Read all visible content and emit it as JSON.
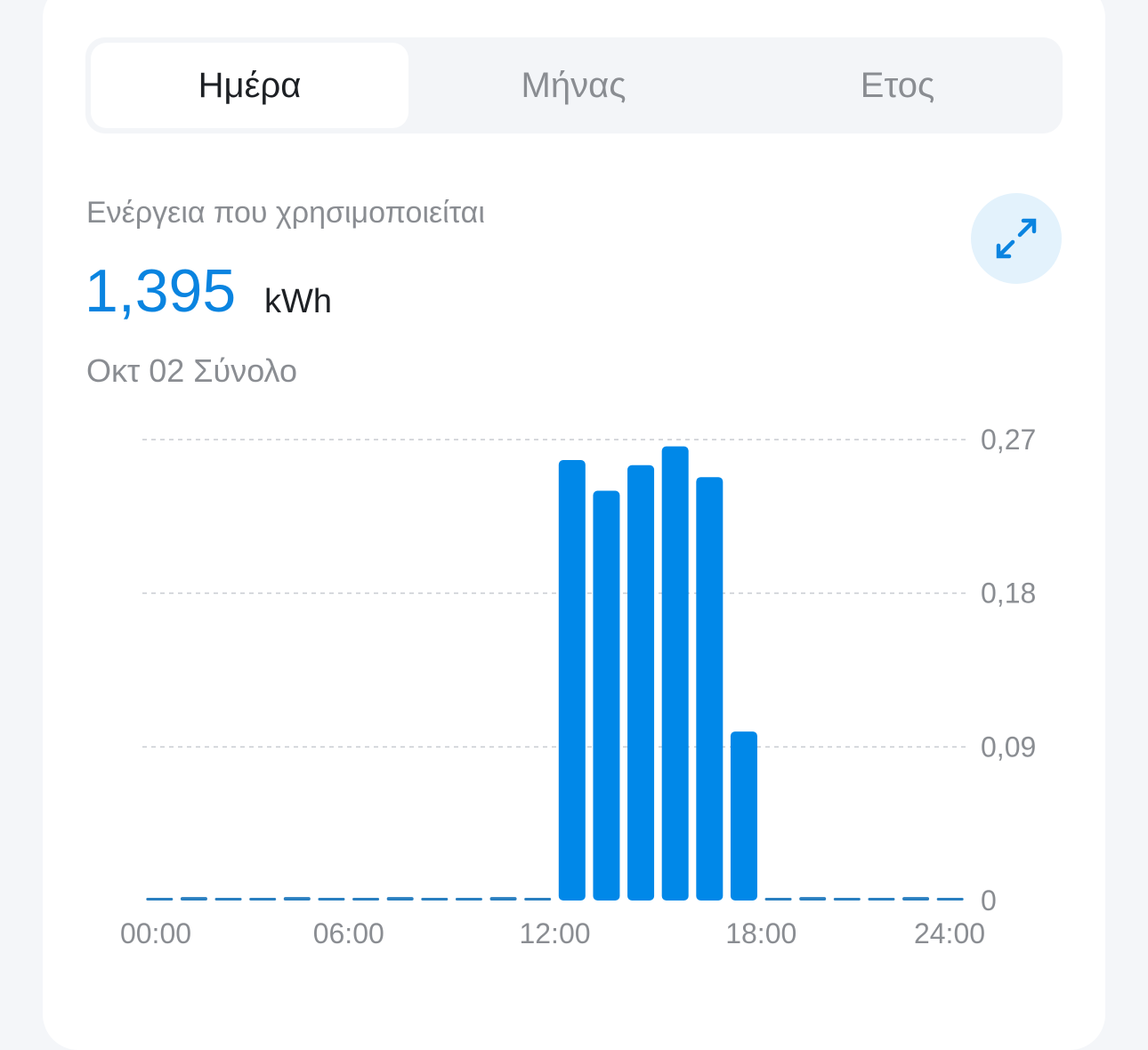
{
  "tabs": [
    {
      "label": "Ημέρα",
      "active": true
    },
    {
      "label": "Μήνας",
      "active": false
    },
    {
      "label": "Ετος",
      "active": false
    }
  ],
  "metric": {
    "label": "Ενέργεια που χρησιμοποιείται",
    "value": "1,395",
    "unit": "kWh",
    "subtitle": "Οκτ 02 Σύνολο"
  },
  "icons": {
    "expand": "expand-arrows-icon"
  },
  "colors": {
    "accent": "#0a84e0",
    "bar": "#0088e8"
  },
  "chart_data": {
    "type": "bar",
    "x": [
      0,
      1,
      2,
      3,
      4,
      5,
      6,
      7,
      8,
      9,
      10,
      11,
      12,
      13,
      14,
      15,
      16,
      17,
      18,
      19,
      20,
      21,
      22,
      23
    ],
    "values": [
      0.0015,
      0.002,
      0.0015,
      0.0015,
      0.002,
      0.0015,
      0.0015,
      0.002,
      0.0015,
      0.0015,
      0.002,
      0.0015,
      0.258,
      0.24,
      0.255,
      0.266,
      0.248,
      0.099,
      0.0015,
      0.002,
      0.0015,
      0.0015,
      0.002,
      0.0015
    ],
    "xticks": [
      "00:00",
      "06:00",
      "12:00",
      "18:00",
      "24:00"
    ],
    "yticks": [
      "0",
      "0,09",
      "0,18",
      "0,27"
    ],
    "ylim": [
      0,
      0.27
    ],
    "xlim": [
      0,
      24
    ],
    "grid": true,
    "yaxis_position": "right"
  }
}
